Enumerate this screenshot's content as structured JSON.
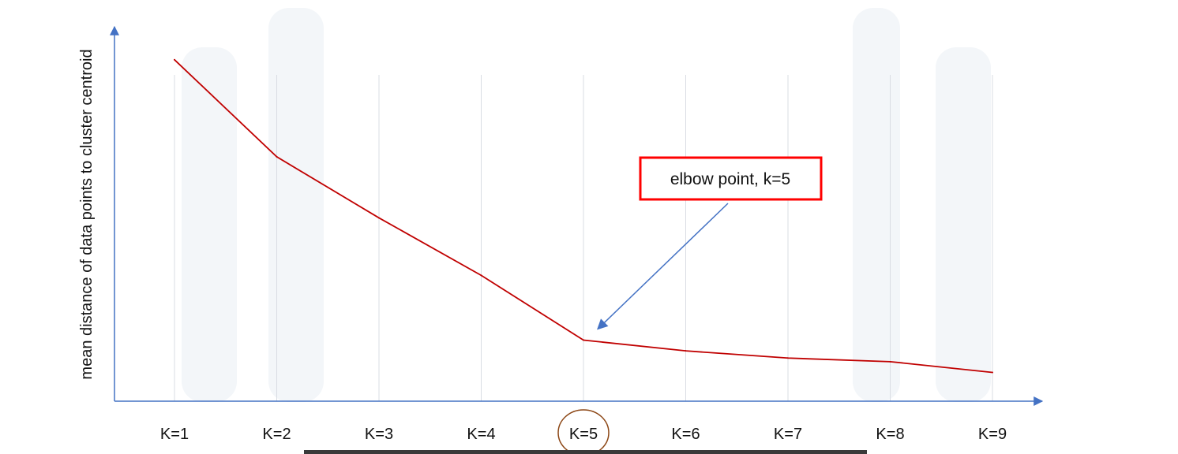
{
  "chart_data": {
    "type": "line",
    "title": "",
    "xlabel": "",
    "ylabel": "mean distance of data points to cluster centroid",
    "categories": [
      "K=1",
      "K=2",
      "K=3",
      "K=4",
      "K=5",
      "K=6",
      "K=7",
      "K=8",
      "K=9"
    ],
    "series": [
      {
        "name": "mean distance",
        "values": [
          95,
          68,
          51,
          35,
          17,
          14,
          12,
          11,
          8
        ]
      }
    ],
    "ylim": [
      0,
      100
    ],
    "grid": "vertical",
    "highlight_category": "K=5",
    "annotation": {
      "text": "elbow point, k=5",
      "target_category": "K=5"
    },
    "colors": {
      "line": "#c00000",
      "axis": "#4472c4",
      "grid": "#d9dde3",
      "annotation_border": "#ff0000",
      "highlight_circle": "#8b4513",
      "arrow": "#4472c4"
    }
  }
}
